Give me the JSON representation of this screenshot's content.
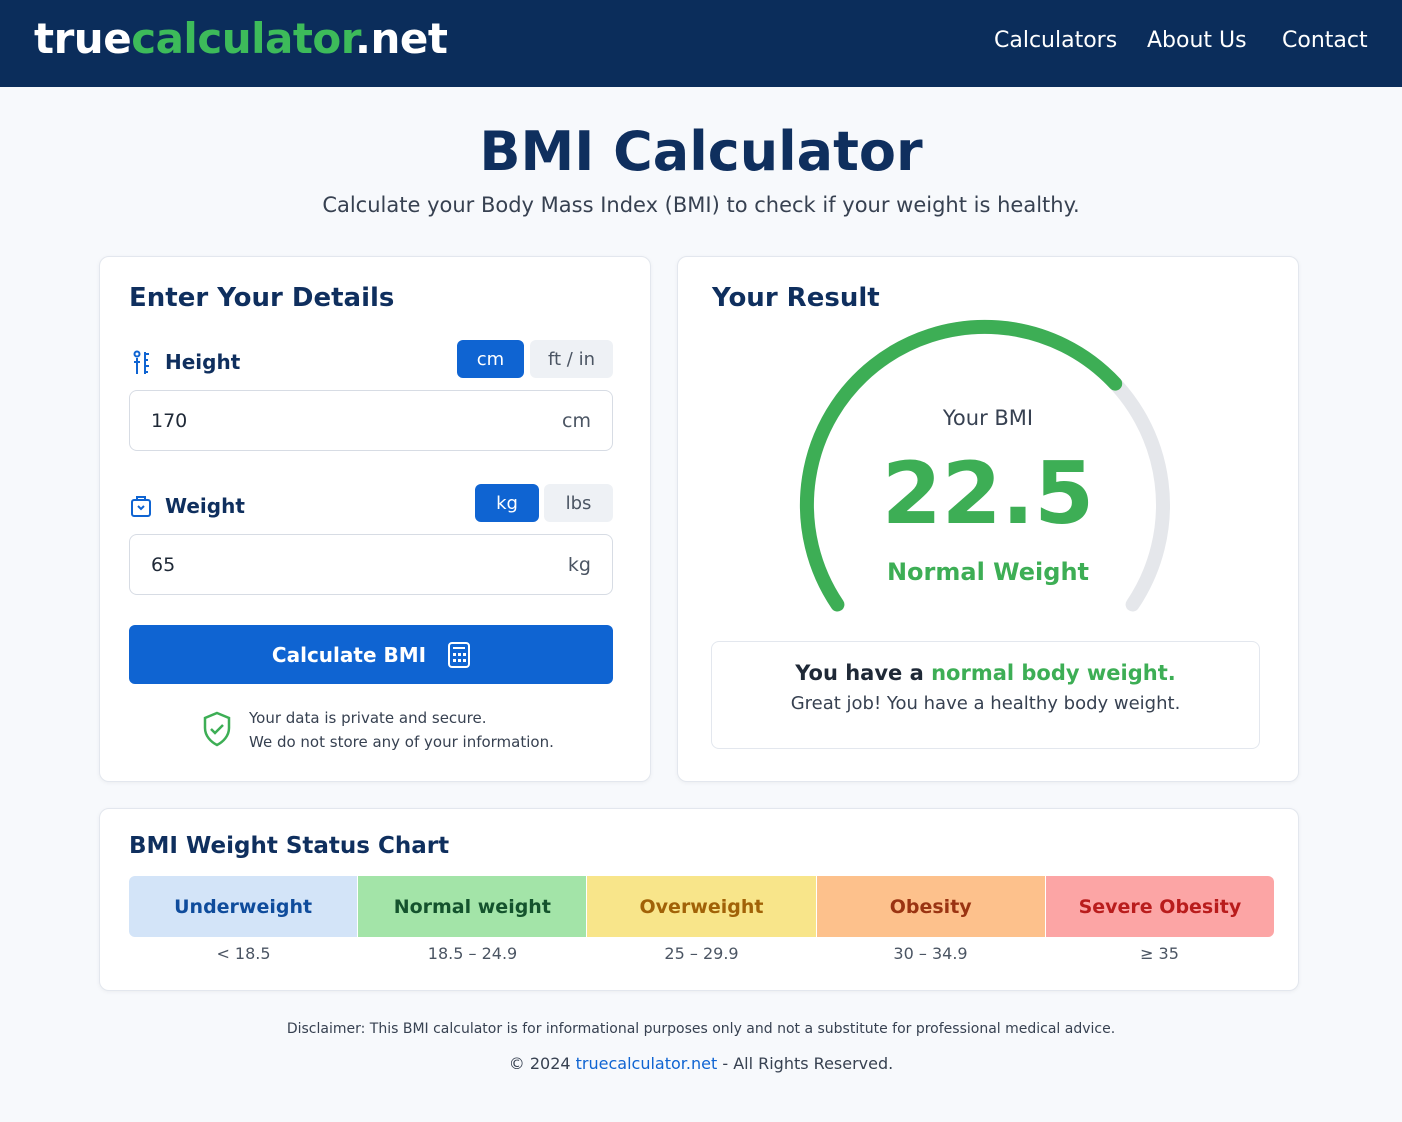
{
  "header": {
    "logo": {
      "part1": "true",
      "part2": "calculator",
      "part3": ".net"
    },
    "nav": [
      "Calculators",
      "About Us",
      "Contact"
    ]
  },
  "hero": {
    "title": "BMI Calculator",
    "subtitle": "Calculate your Body Mass Index (BMI) to check if your weight is healthy."
  },
  "details": {
    "title": "Enter Your Details",
    "height": {
      "label": "Height",
      "units": [
        "cm",
        "ft / in"
      ],
      "value": "170",
      "unit": "cm"
    },
    "weight": {
      "label": "Weight",
      "units": [
        "kg",
        "lbs"
      ],
      "value": "65",
      "unit": "kg"
    },
    "button": "Calculate BMI",
    "privacy": [
      "Your data is private and secure.",
      "We do not store any of your information."
    ]
  },
  "result": {
    "title": "Your Result",
    "bmi_label": "Your BMI",
    "bmi": "22.5",
    "status": "Normal Weight",
    "message": {
      "lead": "You have a ",
      "highlight": "normal body weight."
    },
    "detail": "Great job! You have a healthy body weight."
  },
  "status_chart": {
    "title": "BMI Weight Status Chart",
    "categories": [
      {
        "name": "Underweight",
        "range": "< 18.5"
      },
      {
        "name": "Normal weight",
        "range": "18.5 – 24.9"
      },
      {
        "name": "Overweight",
        "range": "25 – 29.9"
      },
      {
        "name": "Obesity",
        "range": "30 – 34.9"
      },
      {
        "name": "Severe Obesity",
        "range": "≥ 35"
      }
    ]
  },
  "footer": {
    "disclaimer": "Disclaimer: This BMI calculator is for informational purposes only and not a substitute for professional medical advice.",
    "copyright": {
      "lead": "© 2024 ",
      "link": "truecalculator.net",
      "tail": " - All Rights Reserved."
    }
  }
}
